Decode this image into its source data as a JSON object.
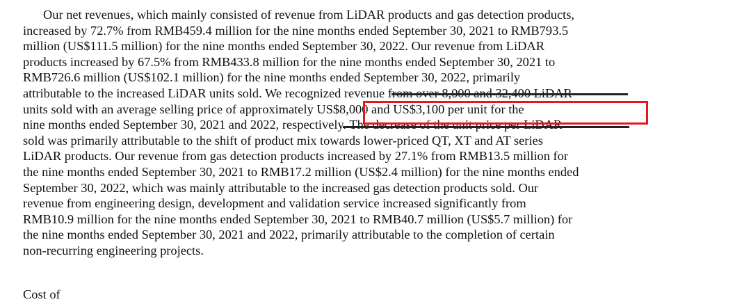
{
  "paragraph": {
    "lines": [
      "Our net revenues, which mainly consisted of revenue from LiDAR products and gas detection products,",
      "increased by 72.7% from RMB459.4 million for the nine months ended September 30, 2021 to RMB793.5",
      "million (US$111.5 million) for the nine months ended September 30, 2022. Our revenue from LiDAR",
      "products increased by 67.5% from RMB433.8 million for the nine months ended September 30, 2021 to",
      "RMB726.6 million (US$102.1 million) for the nine months ended September 30, 2022, primarily",
      "attributable to the increased LiDAR units sold. We recognized revenue from over 8,000 and 32,400 LiDAR",
      "units sold with an average selling price of approximately US$8,000 and US$3,100 per unit for the",
      "nine months ended September 30, 2021 and 2022, respectively. The decrease of the unit price per LiDAR",
      "sold was primarily attributable to the shift of product mix towards lower-priced QT, XT and AT series",
      "LiDAR products. Our revenue from gas detection products increased by 27.1% from RMB13.5 million for",
      "the nine months ended September 30, 2021 to RMB17.2 million (US$2.4 million) for the nine months ended",
      "September 30, 2022, which was mainly attributable to the increased gas detection products sold. Our",
      "revenue from engineering design, development and validation service increased significantly from",
      "RMB10.9 million for the nine months ended September 30, 2021 to RMB40.7 million (US$5.7 million) for",
      "the nine months ended September 30, 2021 and 2022, primarily attributable to the completion of certain",
      "non-recurring engineering projects."
    ]
  },
  "next_heading": "Cost of"
}
